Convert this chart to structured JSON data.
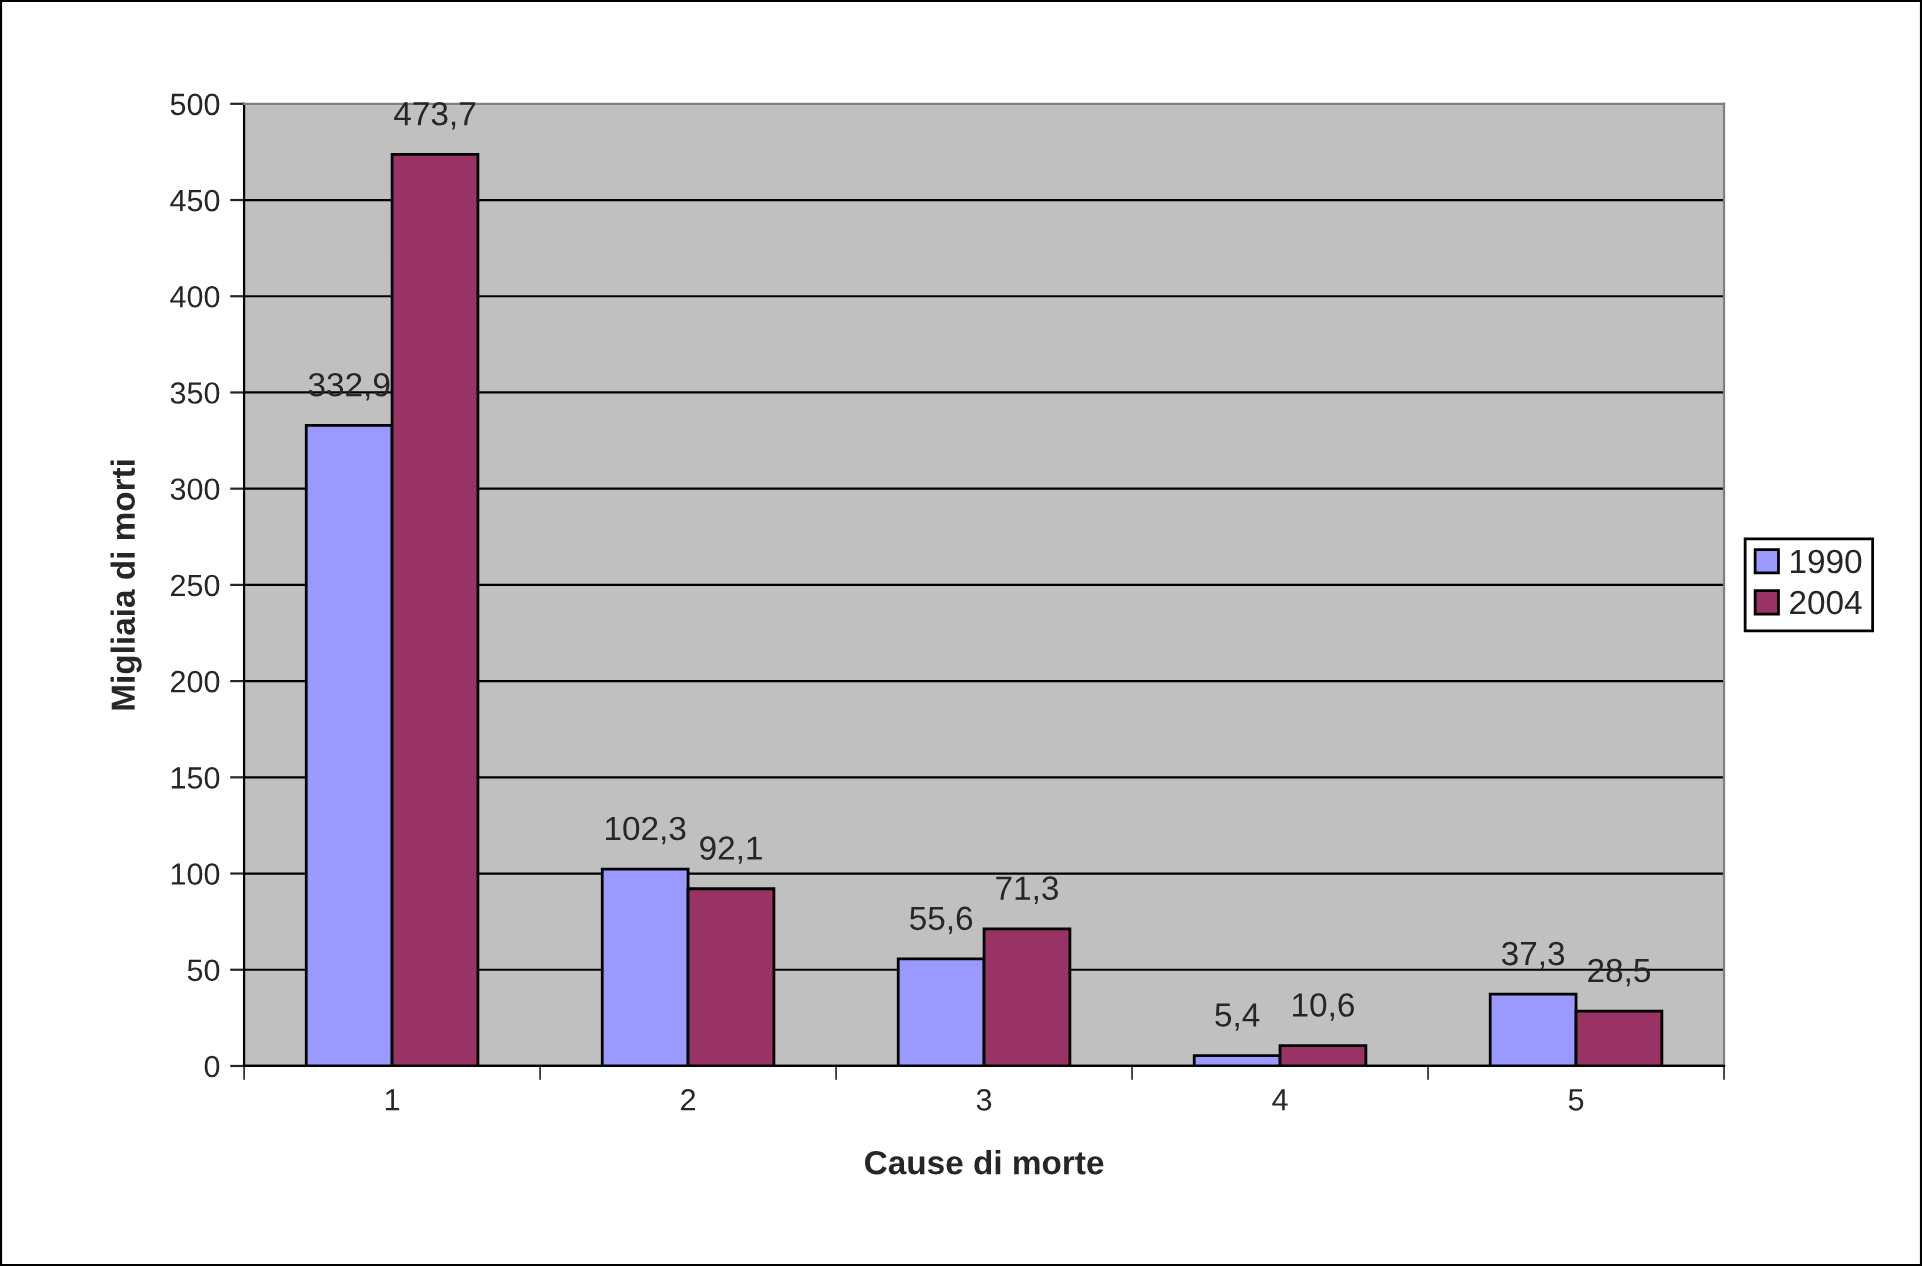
{
  "chart_data": {
    "type": "bar",
    "xlabel": "Cause di morte",
    "ylabel": "Migliaia di morti",
    "categories": [
      "1",
      "2",
      "3",
      "4",
      "5"
    ],
    "series": [
      {
        "name": "1990",
        "color": "#9999ff",
        "values": [
          332.9,
          102.3,
          55.6,
          5.4,
          37.3
        ],
        "value_labels": [
          "332,9",
          "102,3",
          "55,6",
          "5,4",
          "37,3"
        ]
      },
      {
        "name": "2004",
        "color": "#993366",
        "values": [
          473.7,
          92.1,
          71.3,
          10.6,
          28.5
        ],
        "value_labels": [
          "473,7",
          "92,1",
          "71,3",
          "10,6",
          "28,5"
        ]
      }
    ],
    "ylim": [
      0,
      500
    ],
    "yticks": [
      0,
      50,
      100,
      150,
      200,
      250,
      300,
      350,
      400,
      450,
      500
    ],
    "grid": "y",
    "legend": "right"
  }
}
